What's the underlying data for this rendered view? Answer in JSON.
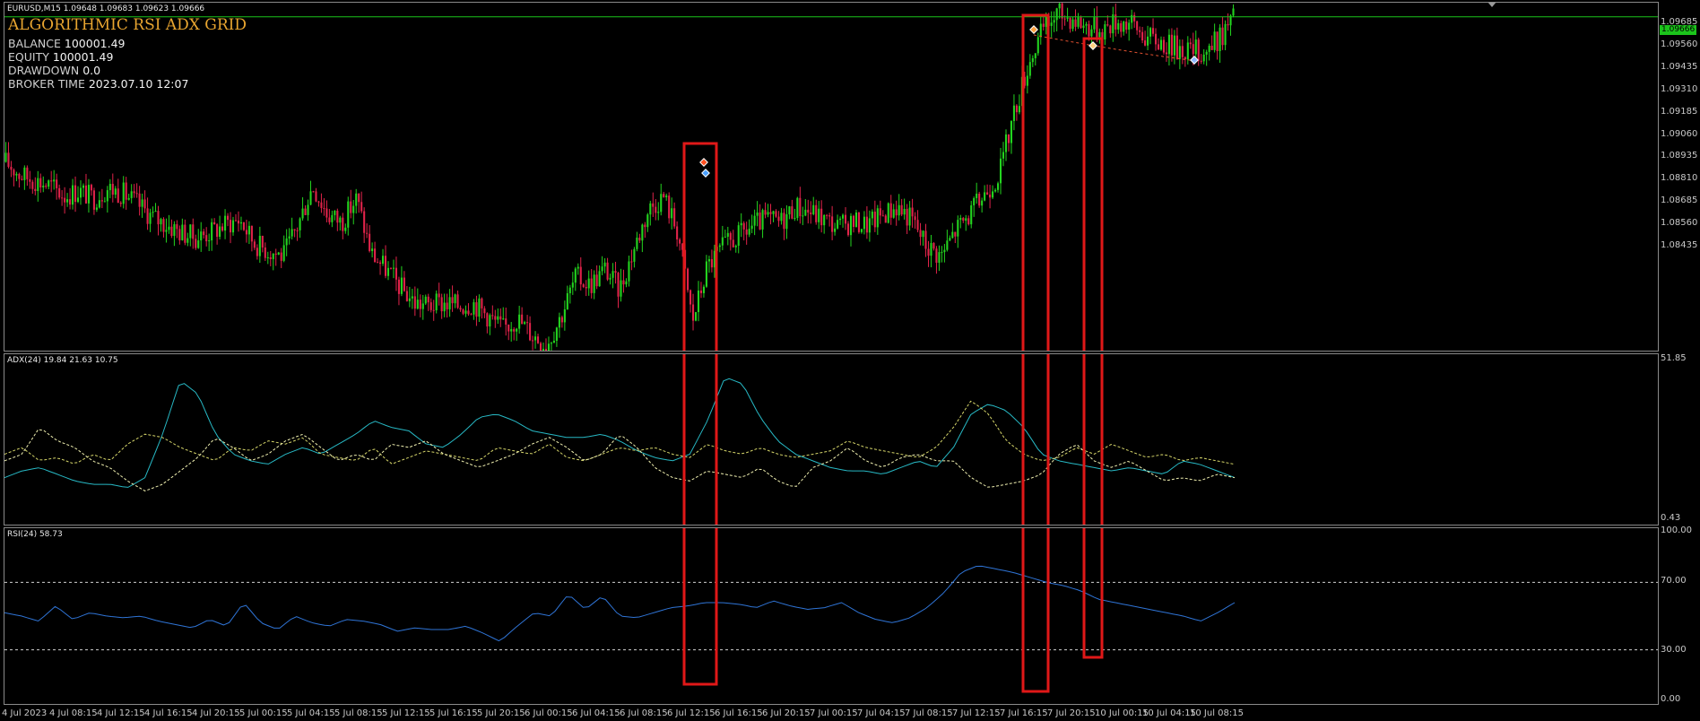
{
  "header": {
    "symbol_line": "EURUSD,M15  1.09648 1.09683 1.09623 1.09666",
    "ea_title": "ALGORITHMIC RSI ADX GRID"
  },
  "stats": [
    {
      "label": "BALANCE",
      "value": "100001.49"
    },
    {
      "label": "EQUITY",
      "value": "100001.49"
    },
    {
      "label": "DRAWDOWN",
      "value": "0.0"
    },
    {
      "label": "BROKER TIME",
      "value": "2023.07.10 12:07"
    }
  ],
  "price_axis": [
    "1.09685",
    "1.09560",
    "1.09435",
    "1.09310",
    "1.09185",
    "1.09060",
    "1.08935",
    "1.08810",
    "1.08685",
    "1.08560",
    "1.08435"
  ],
  "current_price": "1.09666",
  "adx": {
    "label": "ADX(24) 19.84 21.63 10.75",
    "scale_max": "51.85",
    "scale_min": "0.43"
  },
  "rsi": {
    "label": "RSI(24) 58.73",
    "levels": [
      "100.00",
      "70.00",
      "30.00",
      "0.00"
    ]
  },
  "time_axis": [
    "4 Jul 2023",
    "4 Jul 08:15",
    "4 Jul 12:15",
    "4 Jul 16:15",
    "4 Jul 20:15",
    "5 Jul 00:15",
    "5 Jul 04:15",
    "5 Jul 08:15",
    "5 Jul 12:15",
    "5 Jul 16:15",
    "5 Jul 20:15",
    "6 Jul 00:15",
    "6 Jul 04:15",
    "6 Jul 08:15",
    "6 Jul 12:15",
    "6 Jul 16:15",
    "6 Jul 20:15",
    "7 Jul 00:15",
    "7 Jul 04:15",
    "7 Jul 08:15",
    "7 Jul 12:15",
    "7 Jul 16:15",
    "7 Jul 20:15",
    "10 Jul 00:15",
    "10 Jul 04:15",
    "10 Jul 08:15"
  ],
  "colors": {
    "bull": "#23d41f",
    "bear": "#e0234a",
    "adx_main": "#27b8c4",
    "di_plus": "#d6d66a",
    "di_minus": "#f0f0b0",
    "rsi": "#2f74d6",
    "highlight": "#e01818",
    "bid_line": "#1bc41b",
    "grid_line": "#e05030"
  },
  "chart_data": {
    "type": "candlestick",
    "symbol": "EURUSD",
    "timeframe": "M15",
    "last_ohlc": {
      "open": 1.09648,
      "high": 1.09683,
      "low": 1.09623,
      "close": 1.09666
    },
    "price_range": [
      1.0838,
      1.0972
    ],
    "candles_profile": [
      1.0911,
      1.0906,
      1.0904,
      1.0902,
      1.0898,
      1.09,
      1.0897,
      1.0901,
      1.0899,
      1.0895,
      1.089,
      1.0887,
      1.0884,
      1.0882,
      1.0884,
      1.0887,
      1.0889,
      1.088,
      1.0877,
      1.0875,
      1.0887,
      1.0902,
      1.0891,
      1.0888,
      1.0897,
      1.0876,
      1.087,
      1.0863,
      1.0857,
      1.0856,
      1.0857,
      1.0856,
      1.0857,
      1.0852,
      1.0847,
      1.0851,
      1.0845,
      1.0841,
      1.0852,
      1.0867,
      1.0864,
      1.087,
      1.0862,
      1.0878,
      1.0893,
      1.0898,
      1.0884,
      1.085,
      1.0871,
      1.0878,
      1.0882,
      1.0886,
      1.0889,
      1.0888,
      1.0894,
      1.0892,
      1.0889,
      1.0886,
      1.0888,
      1.0887,
      1.0891,
      1.0894,
      1.0889,
      1.0879,
      1.0875,
      1.0885,
      1.0891,
      1.0899,
      1.0907,
      1.093,
      1.0949,
      1.0962,
      1.0968,
      1.0966,
      1.0963,
      1.0962,
      1.0965,
      1.0964,
      1.0959,
      1.0957,
      1.0955,
      1.0954,
      1.0953,
      1.0958,
      1.0966
    ],
    "adx_range": [
      0.43,
      51.85
    ],
    "adx_main": [
      15,
      17,
      18,
      16,
      14,
      13,
      13,
      12,
      15,
      28,
      44,
      40,
      28,
      22,
      20,
      19,
      22,
      24,
      22,
      25,
      28,
      32,
      30,
      29,
      25,
      24,
      28,
      33,
      34,
      32,
      29,
      28,
      27,
      27,
      28,
      26,
      23,
      21,
      20,
      22,
      32,
      45,
      43,
      33,
      26,
      22,
      20,
      18,
      17,
      17,
      16,
      18,
      20,
      18,
      24,
      34,
      37,
      35,
      30,
      22,
      20,
      19,
      18,
      17,
      18,
      17,
      16,
      20,
      19,
      17,
      15
    ],
    "di_plus": [
      22,
      24,
      20,
      21,
      19,
      22,
      20,
      25,
      28,
      27,
      24,
      22,
      20,
      24,
      23,
      26,
      25,
      27,
      22,
      21,
      20,
      24,
      19,
      21,
      23,
      22,
      21,
      20,
      24,
      23,
      22,
      25,
      21,
      20,
      22,
      24,
      23,
      24,
      22,
      21,
      25,
      23,
      22,
      24,
      22,
      21,
      22,
      23,
      26,
      24,
      23,
      22,
      21,
      24,
      30,
      38,
      34,
      26,
      22,
      20,
      21,
      24,
      22,
      25,
      23,
      21,
      22,
      20,
      21,
      20,
      19
    ],
    "di_minus": [
      20,
      22,
      30,
      26,
      24,
      20,
      18,
      14,
      11,
      13,
      17,
      21,
      27,
      24,
      20,
      22,
      26,
      28,
      24,
      20,
      22,
      20,
      25,
      24,
      26,
      22,
      20,
      18,
      20,
      22,
      25,
      27,
      24,
      20,
      22,
      28,
      24,
      18,
      15,
      14,
      17,
      16,
      15,
      18,
      14,
      12,
      18,
      20,
      24,
      20,
      18,
      21,
      22,
      20,
      20,
      15,
      12,
      13,
      14,
      16,
      22,
      25,
      20,
      18,
      20,
      17,
      14,
      15,
      14,
      16,
      15
    ],
    "rsi_levels": [
      30,
      70
    ],
    "rsi_range": [
      0,
      100
    ],
    "rsi": [
      52,
      50,
      47,
      56,
      48,
      52,
      50,
      49,
      50,
      47,
      45,
      43,
      48,
      44,
      58,
      46,
      42,
      50,
      46,
      44,
      48,
      47,
      45,
      41,
      43,
      42,
      42,
      44,
      40,
      35,
      44,
      52,
      50,
      63,
      54,
      62,
      50,
      49,
      52,
      55,
      56,
      58,
      58,
      57,
      55,
      59,
      56,
      54,
      55,
      58,
      52,
      48,
      46,
      49,
      55,
      64,
      76,
      80,
      78,
      76,
      73,
      70,
      68,
      65,
      60,
      58,
      56,
      54,
      52,
      50,
      47,
      52,
      58
    ]
  }
}
